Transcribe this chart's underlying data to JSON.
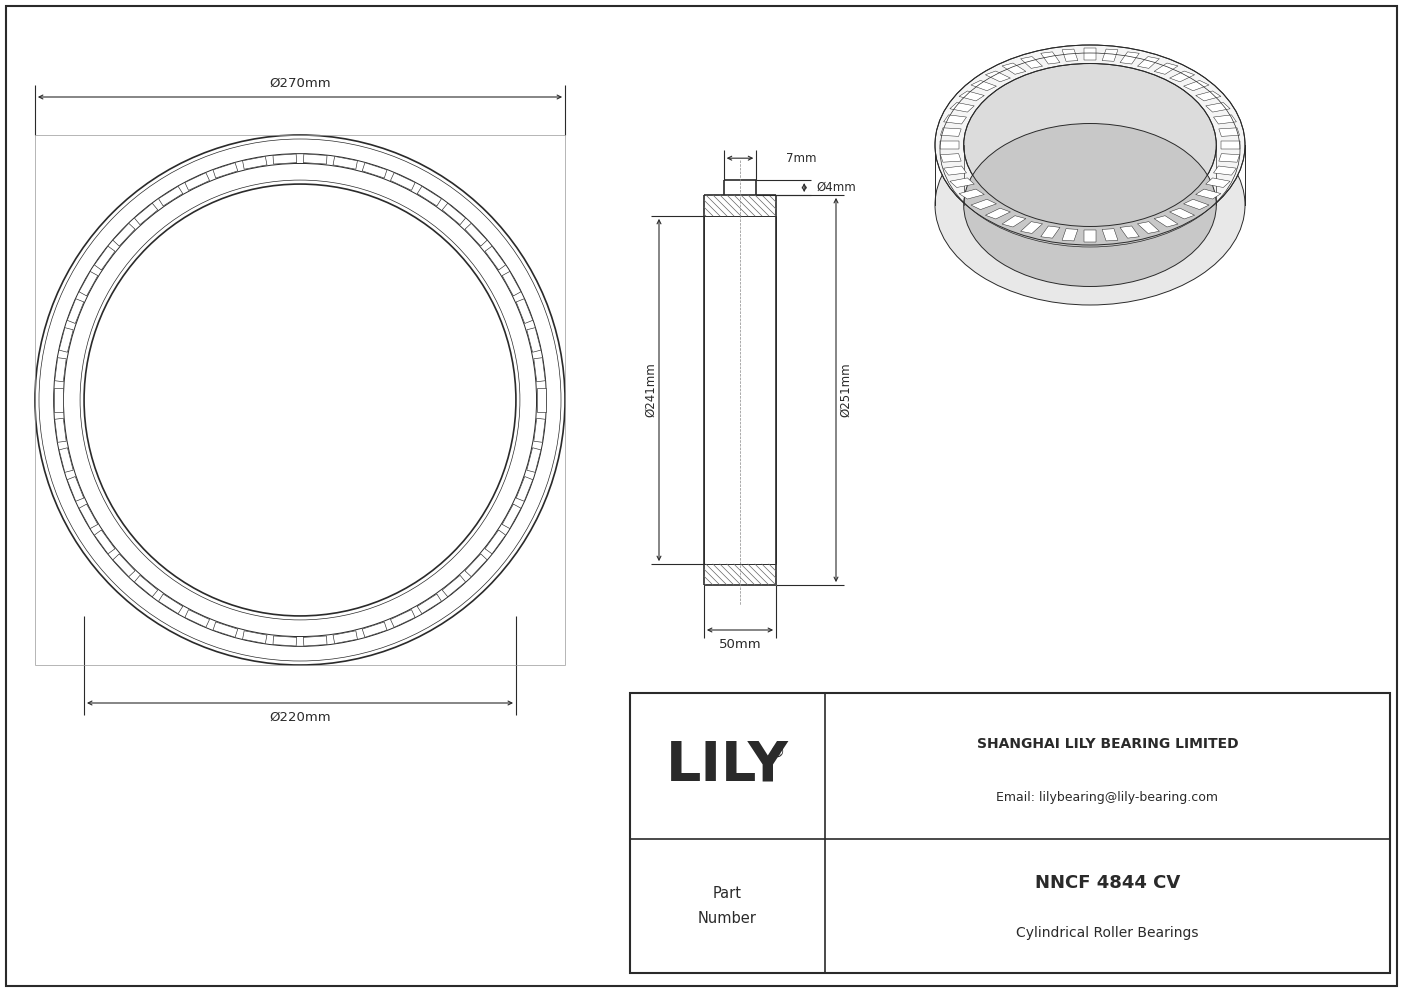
{
  "bg_color": "#ffffff",
  "line_color": "#2a2a2a",
  "title": "NNCF 4844 CV",
  "subtitle": "Cylindrical Roller Bearings",
  "company": "SHANGHAI LILY BEARING LIMITED",
  "email": "Email: lilybearing@lily-bearing.com",
  "part_label": "Part\nNumber",
  "logo": "LILY",
  "logo_reg": "®",
  "dim_OD": "Ø270mm",
  "dim_ID": "Ø220mm",
  "dim_bore": "Ø241mm",
  "dim_outer": "Ø251mm",
  "dim_width": "50mm",
  "dim_groove_w": "7mm",
  "dim_groove_d": "Ø4mm",
  "fig_w": 14.03,
  "fig_h": 9.92,
  "dpi": 100
}
